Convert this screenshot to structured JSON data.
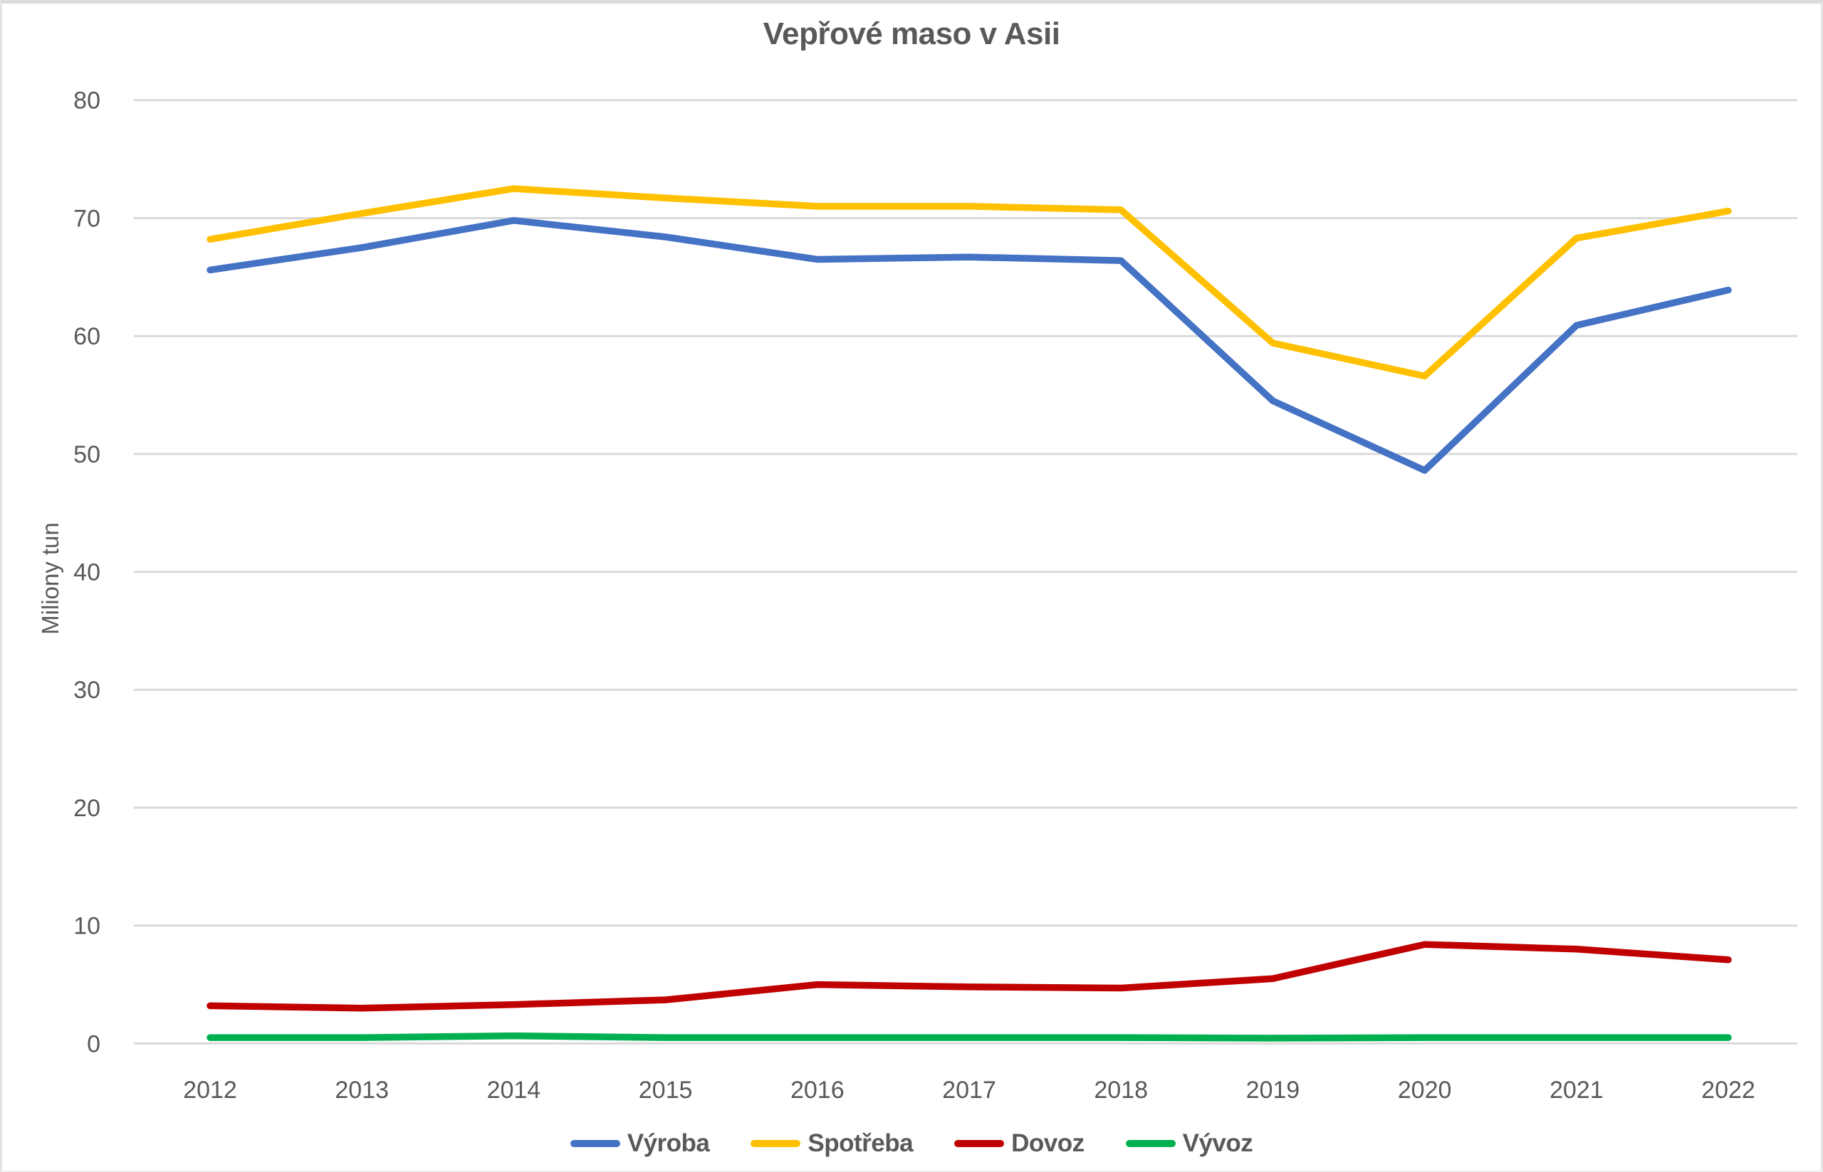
{
  "chart_data": {
    "type": "line",
    "title": "Vepřové maso v Asii",
    "ylabel": "Miliony tun",
    "xlabel": "",
    "categories": [
      "2012",
      "2013",
      "2014",
      "2015",
      "2016",
      "2017",
      "2018",
      "2019",
      "2020",
      "2021",
      "2022"
    ],
    "series": [
      {
        "key": "vyroba",
        "name": "Výroba",
        "color": "#4472C4",
        "values": [
          65.6,
          67.5,
          69.8,
          68.4,
          66.5,
          66.7,
          66.4,
          54.5,
          48.6,
          60.9,
          63.9
        ]
      },
      {
        "key": "spotreba",
        "name": "Spotřeba",
        "color": "#FFC000",
        "values": [
          68.2,
          70.4,
          72.5,
          71.7,
          71.0,
          71.0,
          70.7,
          59.4,
          56.6,
          68.3,
          70.6
        ]
      },
      {
        "key": "dovoz",
        "name": "Dovoz",
        "color": "#C00000",
        "values": [
          3.2,
          3.0,
          3.3,
          3.7,
          5.0,
          4.8,
          4.7,
          5.5,
          8.4,
          8.0,
          7.1
        ]
      },
      {
        "key": "vyvoz",
        "name": "Vývoz",
        "color": "#00B050",
        "values": [
          0.5,
          0.5,
          0.65,
          0.5,
          0.5,
          0.5,
          0.5,
          0.45,
          0.5,
          0.5,
          0.5
        ]
      }
    ],
    "ylim": [
      0,
      80
    ],
    "ytick_step": 10,
    "ytick_labels": [
      "0",
      "10",
      "20",
      "30",
      "40",
      "50",
      "60",
      "70",
      "80"
    ],
    "grid": "horizontal",
    "legend_position": "bottom"
  },
  "colors": {
    "text": "#595959",
    "gridline": "#D9D9D9",
    "background": "#FFFFFF"
  }
}
